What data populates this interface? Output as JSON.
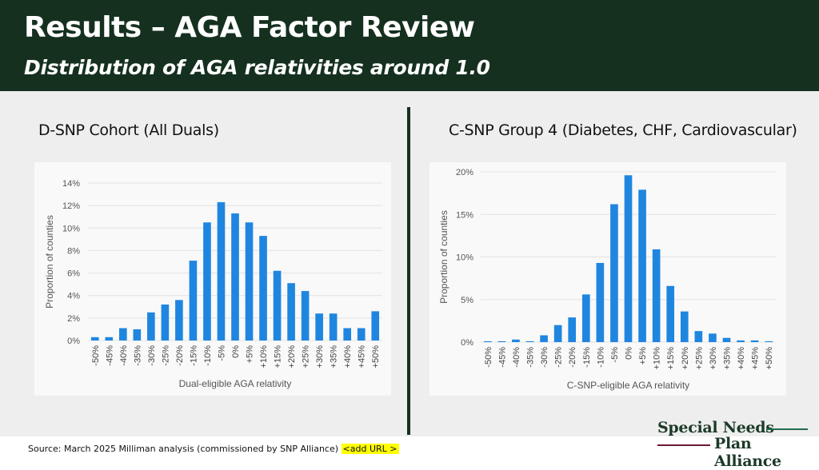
{
  "header": {
    "title": "Results – AGA Factor Review",
    "subtitle": "Distribution of AGA relativities around 1.0"
  },
  "left_heading": "D-SNP Cohort (All Duals)",
  "right_heading": "C-SNP Group 4 (Diabetes, CHF, Cardiovascular)",
  "footer": {
    "source": "Source: March 2025 Milliman analysis (commissioned by SNP Alliance)",
    "url_note": "<add URL >"
  },
  "logo": {
    "line1": "Special Needs",
    "line2": "Plan Alliance",
    "accent_green": "#1f6b4b",
    "accent_maroon": "#6b1a35"
  },
  "colors": {
    "header_bg": "#15301f",
    "bar": "#1f86e0",
    "content_bg": "#eeeeee"
  },
  "chart_data": [
    {
      "type": "bar",
      "xlabel": "Dual-eligible AGA relativity",
      "ylabel": "Proportion of counties",
      "categories": [
        "-50%",
        "-45%",
        "-40%",
        "-35%",
        "-30%",
        "-25%",
        "-20%",
        "-15%",
        "-10%",
        "-5%",
        "0%",
        "+5%",
        "+10%",
        "+15%",
        "+20%",
        "+25%",
        "+30%",
        "+35%",
        "+40%",
        "+45%",
        "+50%"
      ],
      "values": [
        0.3,
        0.3,
        1.1,
        1.0,
        2.5,
        3.2,
        3.6,
        7.1,
        10.5,
        12.3,
        11.3,
        10.5,
        9.3,
        6.2,
        5.1,
        4.4,
        2.4,
        2.4,
        1.1,
        1.1,
        2.6
      ],
      "ylim": [
        0,
        14
      ],
      "yticks": [
        "0%",
        "2%",
        "4%",
        "6%",
        "8%",
        "10%",
        "12%",
        "14%"
      ],
      "ytick_values": [
        0,
        2,
        4,
        6,
        8,
        10,
        12,
        14
      ],
      "grid": true
    },
    {
      "type": "bar",
      "xlabel": "C-SNP-eligible AGA relativity",
      "ylabel": "Proportion of counties",
      "categories": [
        "-50%",
        "-45%",
        "-40%",
        "-35%",
        "-30%",
        "-25%",
        "-20%",
        "-15%",
        "-10%",
        "-5%",
        "0%",
        "+5%",
        "+10%",
        "+15%",
        "+20%",
        "+25%",
        "+30%",
        "+35%",
        "+40%",
        "+45%",
        "+50%"
      ],
      "values": [
        0.1,
        0.1,
        0.3,
        0.1,
        0.8,
        2.0,
        2.9,
        5.6,
        9.3,
        16.2,
        19.6,
        17.9,
        10.9,
        6.6,
        3.6,
        1.3,
        1.0,
        0.5,
        0.2,
        0.2,
        0.1
      ],
      "ylim": [
        0,
        20
      ],
      "yticks": [
        "0%",
        "5%",
        "10%",
        "15%",
        "20%"
      ],
      "ytick_values": [
        0,
        5,
        10,
        15,
        20
      ],
      "grid": true
    }
  ]
}
